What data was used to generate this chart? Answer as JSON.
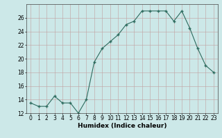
{
  "x": [
    0,
    1,
    2,
    3,
    4,
    5,
    6,
    7,
    8,
    9,
    10,
    11,
    12,
    13,
    14,
    15,
    16,
    17,
    18,
    19,
    20,
    21,
    22,
    23
  ],
  "y": [
    13.5,
    13.0,
    13.0,
    14.5,
    13.5,
    13.5,
    12.0,
    14.0,
    19.5,
    21.5,
    22.5,
    23.5,
    25.0,
    25.5,
    27.0,
    27.0,
    27.0,
    27.0,
    25.5,
    27.0,
    24.5,
    21.5,
    19.0,
    18.0
  ],
  "xlabel": "Humidex (Indice chaleur)",
  "ylabel": "",
  "line_color": "#2d6b5e",
  "marker_color": "#2d6b5e",
  "bg_color": "#cce8e8",
  "grid_color": "#c0a0a0",
  "ylim": [
    12,
    28
  ],
  "yticks": [
    12,
    14,
    16,
    18,
    20,
    22,
    24,
    26
  ],
  "xlim": [
    -0.5,
    23.5
  ],
  "xticks": [
    0,
    1,
    2,
    3,
    4,
    5,
    6,
    7,
    8,
    9,
    10,
    11,
    12,
    13,
    14,
    15,
    16,
    17,
    18,
    19,
    20,
    21,
    22,
    23
  ],
  "xlabel_fontsize": 6.5,
  "tick_fontsize": 5.5
}
